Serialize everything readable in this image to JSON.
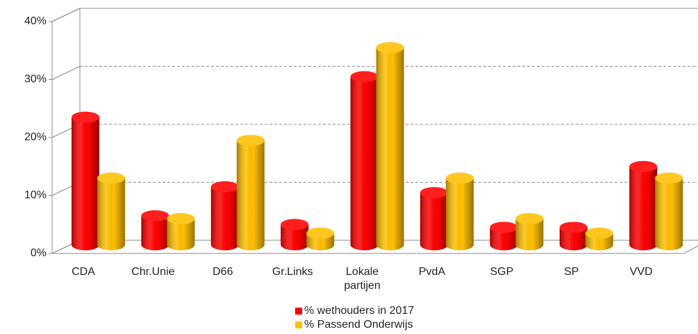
{
  "chart_data": {
    "type": "bar",
    "categories": [
      "CDA",
      "Chr.Unie",
      "D66",
      "Gr.Links",
      "Lokale partijen",
      "PvdA",
      "SGP",
      "SP",
      "VVD"
    ],
    "series": [
      {
        "name": "% wethouders in 2017",
        "color": "#ff0000",
        "values": [
          22,
          5,
          10,
          3.5,
          29,
          9,
          3,
          3,
          13.5
        ]
      },
      {
        "name": "% Passend Onderwijs",
        "color": "#ffc000",
        "values": [
          11.5,
          4.5,
          18,
          2,
          34,
          11.5,
          4.5,
          2,
          11.5
        ]
      }
    ],
    "ylim": [
      0,
      40
    ],
    "yticks": [
      {
        "value": 0,
        "label": "0%"
      },
      {
        "value": 10,
        "label": "10%"
      },
      {
        "value": 20,
        "label": "20%"
      },
      {
        "value": 30,
        "label": "30%"
      },
      {
        "value": 40,
        "label": "40%"
      }
    ],
    "grid": true
  }
}
